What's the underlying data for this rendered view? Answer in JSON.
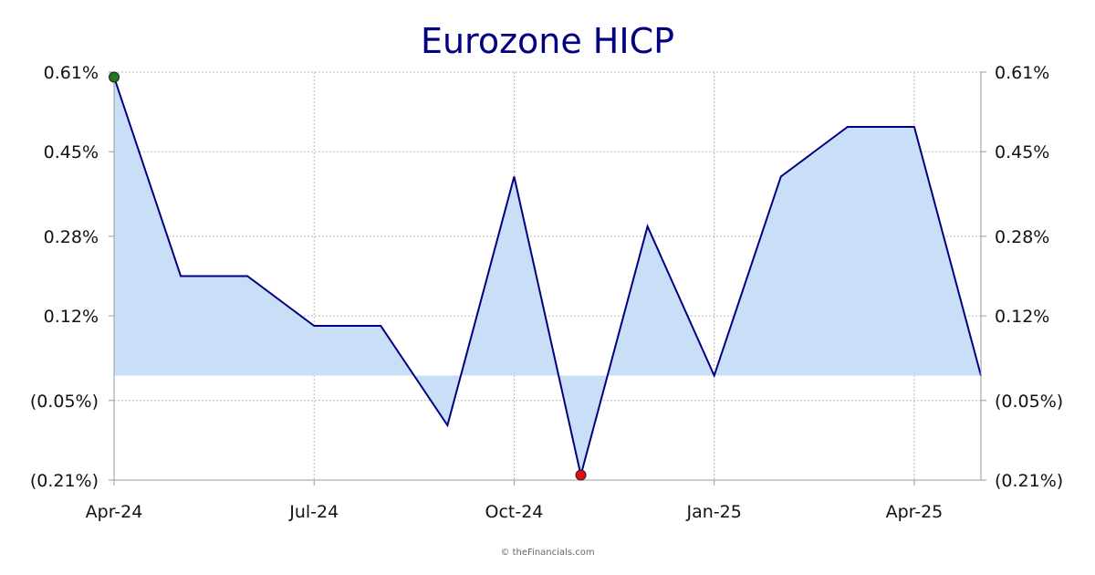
{
  "chart_data": {
    "type": "area",
    "title": "Eurozone HICP",
    "x": [
      "2024-04",
      "2024-05",
      "2024-06",
      "2024-07",
      "2024-08",
      "2024-09",
      "2024-10",
      "2024-11",
      "2024-12",
      "2025-01",
      "2025-02",
      "2025-03",
      "2025-04",
      "2025-05"
    ],
    "values": [
      0.6,
      0.2,
      0.2,
      0.1,
      0.1,
      -0.1,
      0.4,
      -0.2,
      0.3,
      0.0,
      0.4,
      0.5,
      0.5,
      0.0
    ],
    "baseline": 0.0,
    "ylim": [
      -0.21,
      0.61
    ],
    "y_ticks": [
      0.61,
      0.45,
      0.28,
      0.12,
      -0.05,
      -0.21
    ],
    "y_tick_labels": [
      "0.61%",
      "0.45%",
      "0.28%",
      "0.12%",
      "(0.05%)",
      "(0.21%)"
    ],
    "x_ticks": [
      "2024-04",
      "2024-07",
      "2024-10",
      "2025-01",
      "2025-04"
    ],
    "x_tick_labels": [
      "Apr-24",
      "Jul-24",
      "Oct-24",
      "Jan-25",
      "Apr-25"
    ],
    "y_axis_sides": "both",
    "grid": true,
    "max_marker": {
      "x": "2024-04",
      "value": 0.6,
      "color": "#1e7a1e"
    },
    "min_marker": {
      "x": "2024-11",
      "value": -0.2,
      "color": "#e01010"
    },
    "line_color": "#000080",
    "fill_color": "#c8dff7"
  },
  "credit": "© theFinancials.com"
}
